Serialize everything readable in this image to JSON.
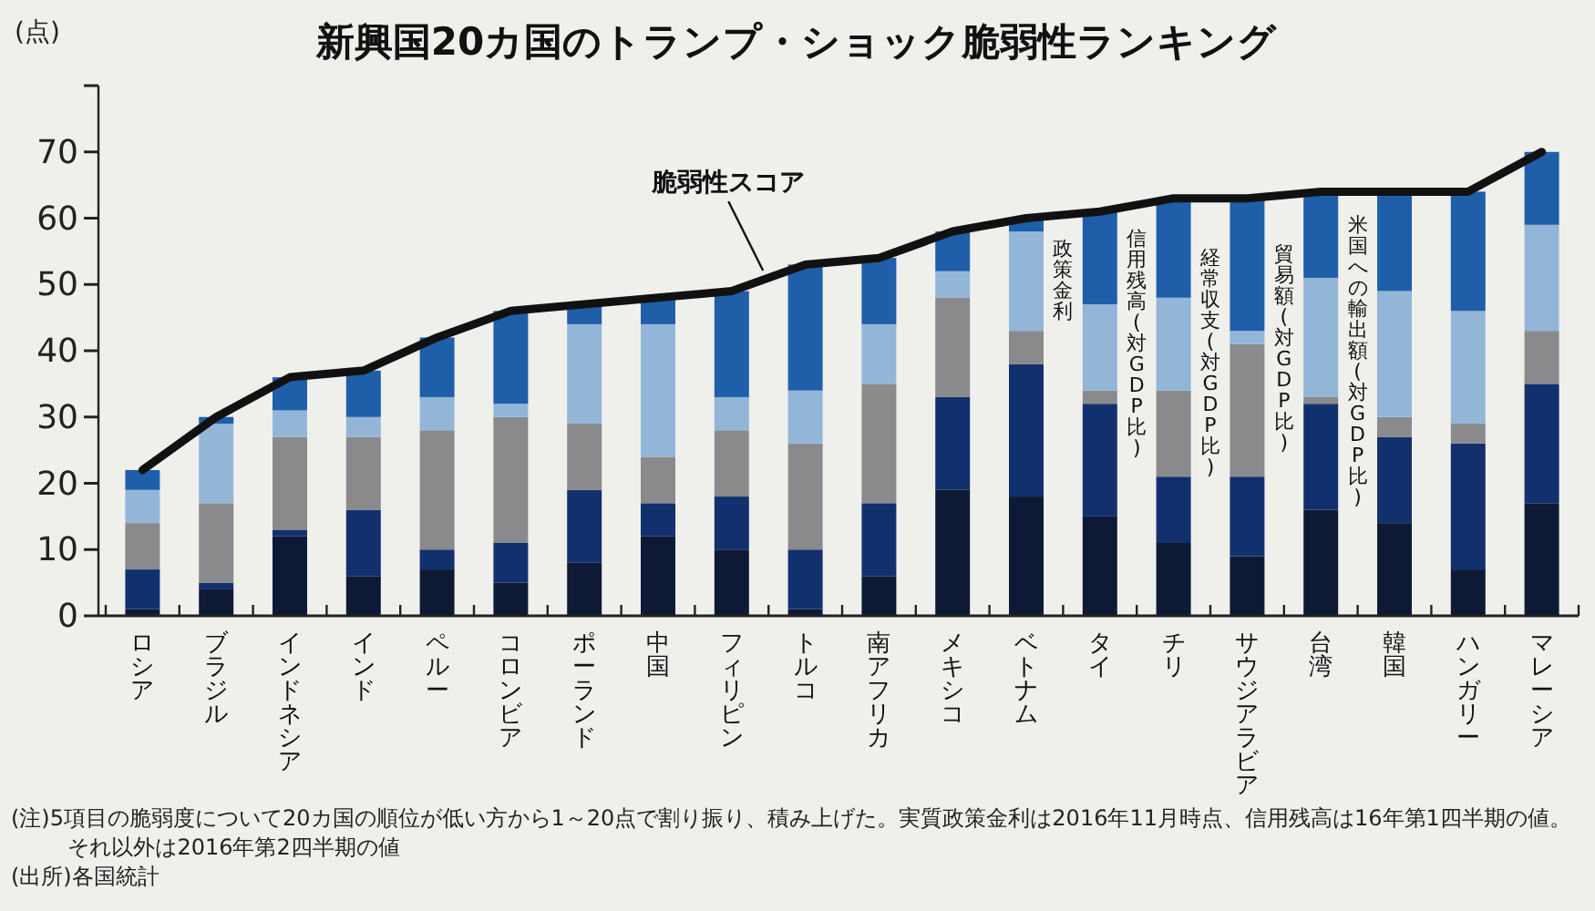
{
  "chart_data": {
    "type": "bar",
    "stacked": true,
    "title": "新興国20カ国のトランプ・ショック脆弱性ランキング",
    "ylabel": "(点)",
    "categories": [
      "ロシア",
      "ブラジル",
      "インドネシア",
      "インド",
      "ペルー",
      "コロンビア",
      "ポーランド",
      "中国",
      "フィリピン",
      "トルコ",
      "南アフリカ",
      "メキシコ",
      "ベトナム",
      "タイ",
      "チリ",
      "サウジアラビア",
      "台湾",
      "韓国",
      "ハンガリー",
      "マレーシア"
    ],
    "series": [
      {
        "name": "米国への輸出額(対GDP比)",
        "color": "#0e1a35",
        "values": [
          1,
          4,
          12,
          6,
          7,
          5,
          8,
          12,
          10,
          1,
          6,
          19,
          18,
          15,
          11,
          9,
          16,
          14,
          7,
          17
        ]
      },
      {
        "name": "貿易額(対GDP比)",
        "color": "#13306e",
        "values": [
          6,
          1,
          1,
          10,
          3,
          6,
          11,
          5,
          8,
          9,
          11,
          14,
          20,
          17,
          10,
          12,
          16,
          13,
          19,
          18
        ]
      },
      {
        "name": "経常収支(対GDP比)",
        "color": "#8a8a8c",
        "values": [
          7,
          12,
          14,
          11,
          18,
          19,
          10,
          7,
          10,
          16,
          18,
          15,
          5,
          2,
          13,
          20,
          1,
          3,
          3,
          8
        ]
      },
      {
        "name": "信用残高(対GDP比)",
        "color": "#93b6d8",
        "values": [
          5,
          12,
          4,
          3,
          5,
          2,
          15,
          20,
          5,
          8,
          9,
          4,
          15,
          13,
          14,
          2,
          18,
          19,
          17,
          16
        ]
      },
      {
        "name": "政策金利",
        "color": "#1f5fa9",
        "values": [
          3,
          1,
          5,
          7,
          9,
          14,
          3,
          4,
          16,
          19,
          10,
          6,
          2,
          14,
          15,
          20,
          13,
          15,
          18,
          11
        ]
      },
      {
        "name": "脆弱性スコア",
        "type": "line",
        "color": "#111111",
        "values": [
          22,
          30,
          36,
          37,
          42,
          46,
          47,
          48,
          49,
          53,
          54,
          58,
          60,
          61,
          63,
          63,
          64,
          64,
          64,
          70
        ]
      }
    ],
    "ylim": [
      0,
      80
    ],
    "yticks": [
      0,
      10,
      20,
      30,
      40,
      50,
      60,
      70,
      {
        "value": 80,
        "label": null
      }
    ],
    "grid": false,
    "legend": false,
    "annotations": [
      "(注)5項目の脆弱度について20カ国の順位が低い方から1～20点で割り振り、積み上げた。実質政策金利は2016年11月時点、信用残高は16年第1四半期の値。それ以外は2016年第2四半期の値",
      "(出所)各国統計"
    ]
  }
}
